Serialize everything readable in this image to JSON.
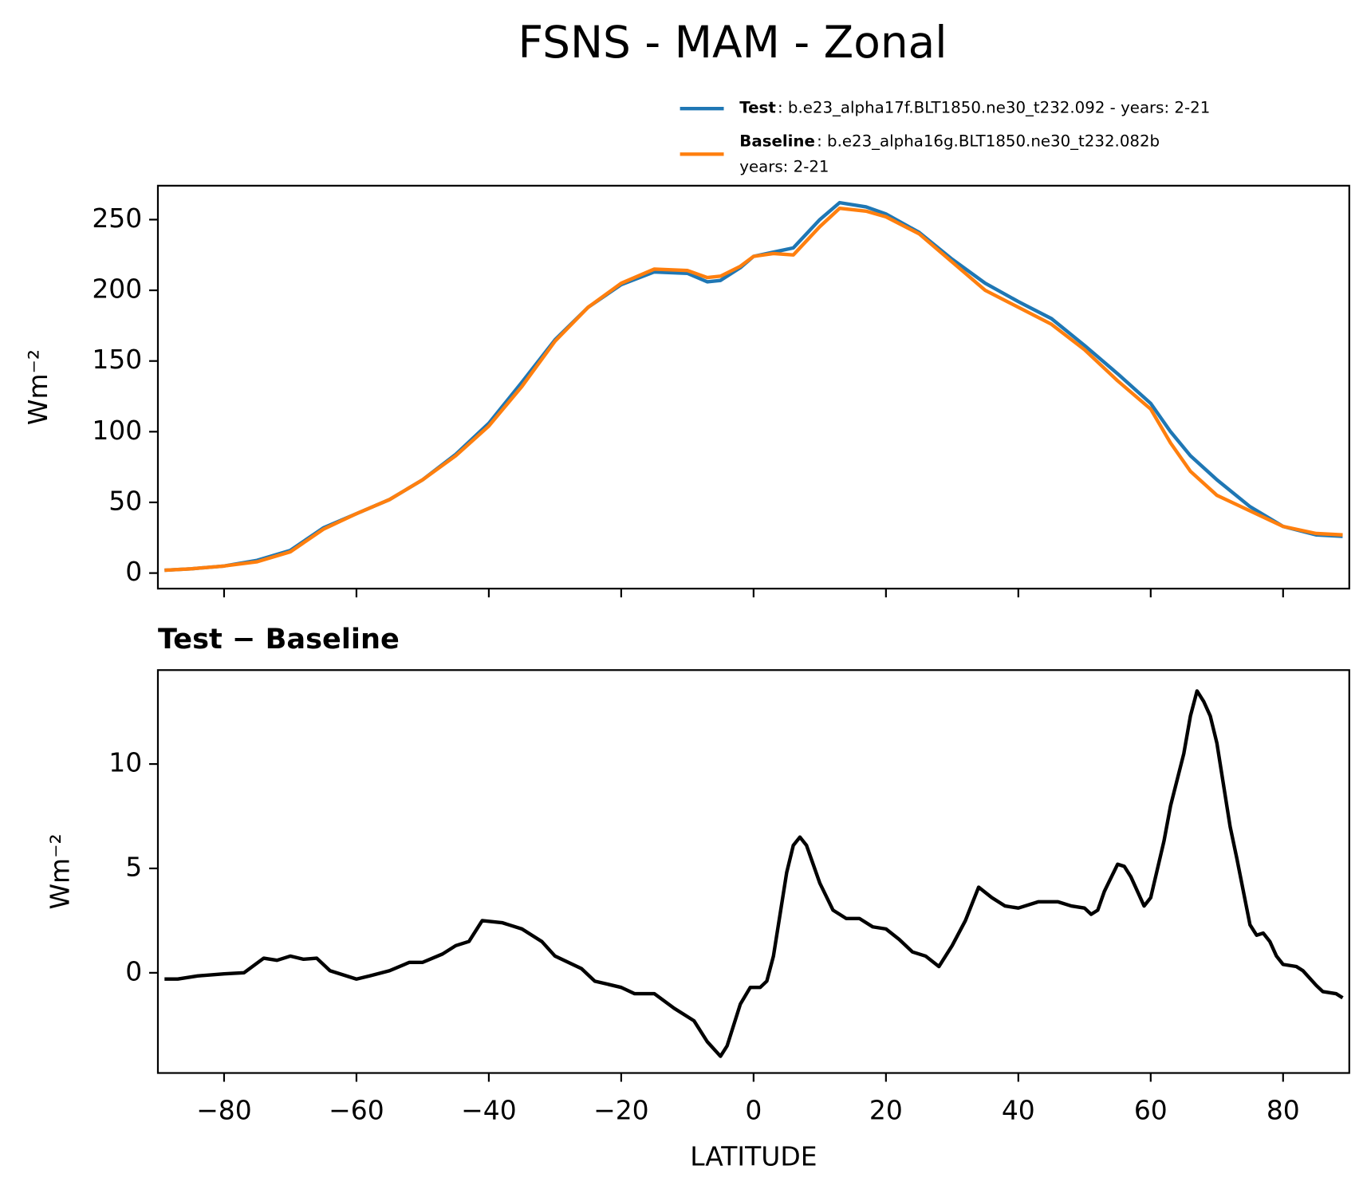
{
  "chart_data": [
    {
      "type": "line",
      "title": "FSNS - MAM - Zonal",
      "ylabel": "Wm⁻²",
      "x": [
        -89,
        -85,
        -80,
        -75,
        -70,
        -65,
        -60,
        -55,
        -50,
        -45,
        -40,
        -35,
        -30,
        -25,
        -20,
        -15,
        -10,
        -7,
        -5,
        -2,
        0,
        3,
        6,
        10,
        13,
        17,
        20,
        25,
        30,
        35,
        40,
        45,
        50,
        55,
        60,
        63,
        66,
        70,
        75,
        80,
        85,
        89
      ],
      "series": [
        {
          "name": "Test",
          "legend_details": [
            ": b.e23_alpha17f.BLT1850.ne30_t232.092 - years: 2-21"
          ],
          "color": "#1f77b4",
          "values": [
            2,
            3,
            5,
            9,
            16,
            32,
            42,
            52,
            66,
            84,
            106,
            135,
            165,
            188,
            204,
            213,
            212,
            206,
            207,
            216,
            224,
            227,
            230,
            250,
            262,
            259,
            254,
            241,
            222,
            205,
            192,
            180,
            161,
            141,
            120,
            100,
            83,
            66,
            47,
            33,
            27,
            26
          ]
        },
        {
          "name": "Baseline",
          "legend_details": [
            ": b.e23_alpha16g.BLT1850.ne30_t232.082b",
            "years: 2-21"
          ],
          "color": "#ff7f0e",
          "values": [
            2,
            3,
            5,
            8,
            15,
            31,
            42,
            52,
            66,
            83,
            104,
            132,
            164,
            188,
            205,
            215,
            214,
            209,
            210,
            217,
            224,
            226,
            225,
            245,
            258,
            256,
            252,
            240,
            220,
            200,
            188,
            176,
            158,
            136,
            116,
            92,
            72,
            55,
            44,
            33,
            28,
            27
          ]
        }
      ],
      "xlim": [
        -90,
        90
      ],
      "xticks": [
        -80,
        -60,
        -40,
        -20,
        0,
        20,
        40,
        60,
        80
      ],
      "ylim": [
        -11,
        274
      ],
      "yticks": [
        0,
        50,
        100,
        150,
        200,
        250
      ]
    },
    {
      "type": "line",
      "title": "Test − Baseline",
      "ylabel": "Wm⁻²",
      "xlabel": "LATITUDE",
      "x": [
        -89,
        -87,
        -84,
        -80,
        -77,
        -74,
        -72,
        -70,
        -68,
        -66,
        -64,
        -60,
        -58,
        -55,
        -52,
        -50,
        -47,
        -45,
        -43,
        -41,
        -38,
        -35,
        -32,
        -30,
        -26,
        -24,
        -20,
        -18,
        -15,
        -12,
        -9,
        -7,
        -5,
        -4,
        -2,
        -0.5,
        1,
        2,
        3,
        5,
        6,
        7,
        8,
        10,
        12,
        14,
        16,
        18,
        20,
        22,
        24,
        26,
        28,
        30,
        32,
        34,
        36,
        38,
        40,
        43,
        46,
        48,
        50,
        51,
        52,
        53,
        55,
        56,
        57,
        59,
        60,
        62,
        63,
        65,
        66,
        67,
        68,
        69,
        70,
        72,
        73,
        75,
        76,
        77,
        78,
        79,
        80,
        82,
        83,
        85,
        86,
        88,
        89
      ],
      "series": [
        {
          "name": "Test − Baseline",
          "color": "#000000",
          "values": [
            -0.3,
            -0.3,
            -0.15,
            -0.05,
            0,
            0.7,
            0.6,
            0.8,
            0.65,
            0.7,
            0.1,
            -0.3,
            -0.15,
            0.1,
            0.5,
            0.5,
            0.9,
            1.3,
            1.5,
            2.5,
            2.4,
            2.1,
            1.5,
            0.8,
            0.2,
            -0.4,
            -0.7,
            -1,
            -1,
            -1.7,
            -2.3,
            -3.3,
            -4,
            -3.5,
            -1.5,
            -0.7,
            -0.7,
            -0.4,
            0.8,
            4.8,
            6.1,
            6.5,
            6.1,
            4.3,
            3,
            2.6,
            2.6,
            2.2,
            2.1,
            1.6,
            1,
            0.8,
            0.3,
            1.3,
            2.5,
            4.1,
            3.6,
            3.2,
            3.1,
            3.4,
            3.4,
            3.2,
            3.1,
            2.8,
            3,
            3.9,
            5.2,
            5.1,
            4.6,
            3.2,
            3.6,
            6.3,
            8,
            10.5,
            12.3,
            13.5,
            13,
            12.3,
            11,
            7,
            5.5,
            2.3,
            1.8,
            1.9,
            1.5,
            0.8,
            0.4,
            0.3,
            0.1,
            -0.6,
            -0.9,
            -1,
            -1.2
          ]
        }
      ],
      "xlim": [
        -90,
        90
      ],
      "xticks": [
        {
          "value": -80,
          "label": "−80"
        },
        {
          "value": -60,
          "label": "−60"
        },
        {
          "value": -40,
          "label": "−40"
        },
        {
          "value": -20,
          "label": "−20"
        },
        0,
        20,
        40,
        60,
        80
      ],
      "ylim": [
        -4.8,
        14.5
      ],
      "yticks": [
        0,
        5,
        10
      ]
    }
  ]
}
